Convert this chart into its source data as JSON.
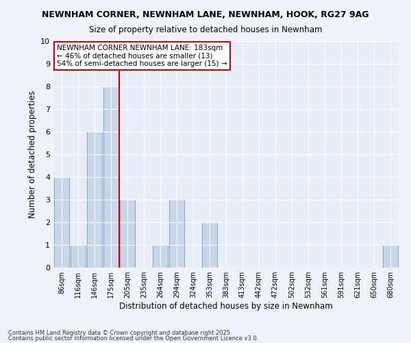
{
  "title1": "NEWNHAM CORNER, NEWNHAM LANE, NEWNHAM, HOOK, RG27 9AG",
  "title2": "Size of property relative to detached houses in Newnham",
  "xlabel": "Distribution of detached houses by size in Newnham",
  "ylabel": "Number of detached properties",
  "bins": [
    "86sqm",
    "116sqm",
    "146sqm",
    "175sqm",
    "205sqm",
    "235sqm",
    "264sqm",
    "294sqm",
    "324sqm",
    "353sqm",
    "383sqm",
    "413sqm",
    "442sqm",
    "472sqm",
    "502sqm",
    "532sqm",
    "561sqm",
    "591sqm",
    "621sqm",
    "650sqm",
    "680sqm"
  ],
  "values": [
    4,
    1,
    6,
    8,
    3,
    0,
    1,
    3,
    0,
    2,
    0,
    0,
    0,
    0,
    0,
    0,
    0,
    0,
    0,
    0,
    1
  ],
  "bar_color": "#c8d8ea",
  "bar_edge_color": "#7aa8c8",
  "vline_x": 3.5,
  "vline_color": "#cc0000",
  "annotation_text": "NEWNHAM CORNER NEWNHAM LANE: 183sqm\n← 46% of detached houses are smaller (13)\n54% of semi-detached houses are larger (15) →",
  "annotation_box_color": "#ffffff",
  "annotation_box_edge": "#cc0000",
  "fig_background_color": "#f0f4fa",
  "plot_background_color": "#e8eef8",
  "grid_color": "#ffffff",
  "yticks": [
    0,
    1,
    2,
    3,
    4,
    5,
    6,
    7,
    8,
    9,
    10
  ],
  "ylim": [
    0,
    10
  ],
  "footer1": "Contains HM Land Registry data © Crown copyright and database right 2025.",
  "footer2": "Contains public sector information licensed under the Open Government Licence v3.0."
}
